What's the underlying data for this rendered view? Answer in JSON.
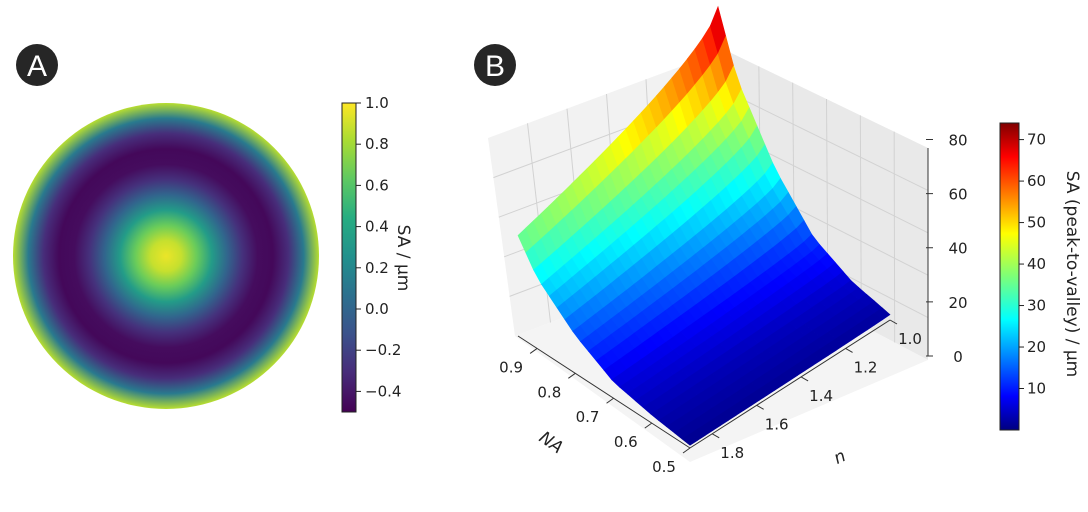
{
  "chart_data": [
    {
      "type": "heatmap",
      "panel": "A",
      "description_label": "Spherical aberration pupil map",
      "colormap": "viridis",
      "colorbar": {
        "label": "SA / μm",
        "min": -0.5,
        "max": 1.0,
        "ticks": [
          -0.4,
          -0.2,
          0.0,
          0.2,
          0.4,
          0.6,
          0.8,
          1.0
        ],
        "tick_labels": [
          "−0.4",
          "−0.2",
          "0.0",
          "0.2",
          "0.4",
          "0.6",
          "0.8",
          "1.0"
        ]
      },
      "radial_profile": {
        "rho": [
          0.0,
          0.1,
          0.2,
          0.3,
          0.4,
          0.5,
          0.6,
          0.7,
          0.8,
          0.9,
          1.0
        ],
        "value": [
          0.96,
          0.88,
          0.66,
          0.33,
          0.0,
          -0.28,
          -0.45,
          -0.47,
          -0.3,
          0.12,
          0.85
        ]
      }
    },
    {
      "type": "surface",
      "panel": "B",
      "colormap": "jet",
      "x_label": "NA",
      "y_label": "n",
      "z_label": "",
      "x_ticks": [
        0.5,
        0.6,
        0.7,
        0.8,
        0.9
      ],
      "x_tick_labels": [
        "0.5",
        "0.6",
        "0.7",
        "0.8",
        "0.9"
      ],
      "y_ticks": [
        1.0,
        1.2,
        1.4,
        1.6,
        1.8
      ],
      "y_tick_labels": [
        "1.0",
        "1.2",
        "1.4",
        "1.6",
        "1.8"
      ],
      "z_ticks": [
        0,
        20,
        40,
        60,
        80
      ],
      "z_tick_labels": [
        "0",
        "20",
        "40",
        "60",
        "80"
      ],
      "xlim": [
        0.5,
        0.95
      ],
      "ylim": [
        1.0,
        1.9
      ],
      "zlim": [
        0,
        95
      ],
      "surface": {
        "na": [
          0.5,
          0.6,
          0.7,
          0.8,
          0.85,
          0.9,
          0.95
        ],
        "n": [
          1.0,
          1.1,
          1.2,
          1.3,
          1.4,
          1.5,
          1.6,
          1.7,
          1.8,
          1.9
        ],
        "z_at_n_1.0": [
          2,
          5,
          12,
          28,
          40,
          52,
          74
        ],
        "z_at_n_1.9": [
          1,
          3,
          6,
          14,
          20,
          26,
          37
        ]
      },
      "colorbar": {
        "label": "SA (peak-to-valley) / μm",
        "min": 0,
        "max": 74,
        "ticks": [
          10,
          20,
          30,
          40,
          50,
          60,
          70
        ],
        "tick_labels": [
          "10",
          "20",
          "30",
          "40",
          "50",
          "60",
          "70"
        ]
      }
    }
  ],
  "panels": {
    "a_label": "A",
    "b_label": "B"
  }
}
